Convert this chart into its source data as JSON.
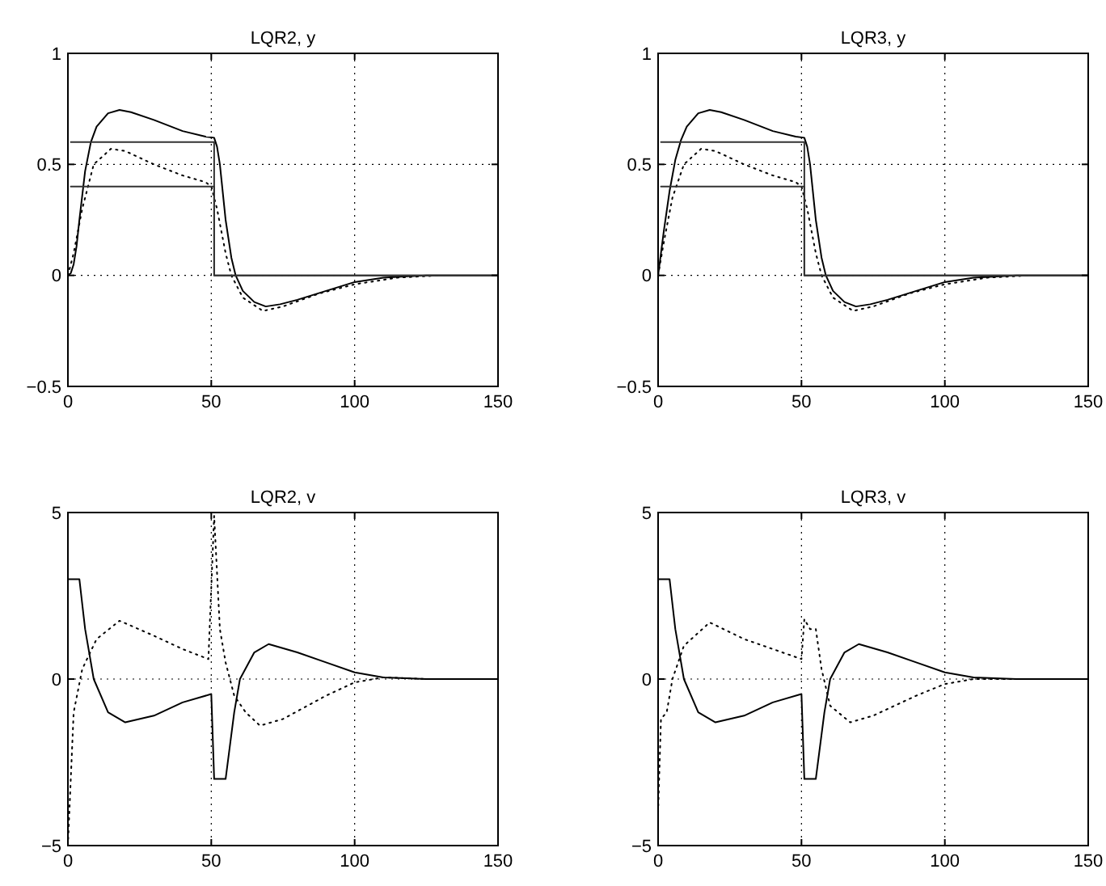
{
  "chart_data": [
    {
      "type": "line",
      "title": "LQR2, y",
      "xlim": [
        0,
        150
      ],
      "xticks": [
        0,
        50,
        100,
        150
      ],
      "ylim": [
        -0.5,
        1
      ],
      "yticks": [
        -0.5,
        0,
        0.5,
        1
      ],
      "grid": true,
      "series": [
        {
          "color": "#000000",
          "line_style": "solid",
          "x": [
            0,
            1,
            2,
            3,
            4,
            6,
            8,
            10,
            14,
            18,
            22,
            30,
            40,
            48,
            51,
            52,
            53,
            55,
            57,
            58.5,
            61,
            65,
            69,
            74,
            80,
            90,
            100,
            110,
            125,
            150
          ],
          "values": [
            0,
            0.01,
            0.05,
            0.13,
            0.25,
            0.47,
            0.6,
            0.67,
            0.73,
            0.745,
            0.735,
            0.7,
            0.65,
            0.625,
            0.62,
            0.58,
            0.5,
            0.25,
            0.08,
            0,
            -0.07,
            -0.12,
            -0.14,
            -0.13,
            -0.11,
            -0.07,
            -0.03,
            -0.01,
            0,
            0
          ]
        },
        {
          "color": "#000000",
          "line_style": "dotted",
          "x": [
            0,
            2,
            5,
            9,
            15,
            20,
            30,
            40,
            48,
            50,
            52,
            55,
            57,
            61,
            68,
            75,
            88,
            100,
            115,
            130
          ],
          "values": [
            0,
            0.1,
            0.3,
            0.5,
            0.57,
            0.56,
            0.5,
            0.45,
            0.42,
            0.4,
            0.3,
            0.1,
            0,
            -0.1,
            -0.16,
            -0.14,
            -0.08,
            -0.04,
            -0.01,
            0
          ]
        },
        {
          "color": "#333333",
          "line_style": "solid",
          "x": [
            1,
            51,
            51,
            150
          ],
          "values": [
            0.6,
            0.6,
            0,
            0
          ]
        },
        {
          "color": "#333333",
          "line_style": "solid",
          "x": [
            1,
            51,
            51,
            150
          ],
          "values": [
            0.4,
            0.4,
            0,
            0
          ]
        }
      ]
    },
    {
      "type": "line",
      "title": "LQR3, y",
      "xlim": [
        0,
        150
      ],
      "xticks": [
        0,
        50,
        100,
        150
      ],
      "ylim": [
        -0.5,
        1
      ],
      "yticks": [
        -0.5,
        0,
        0.5,
        1
      ],
      "grid": true,
      "series": [
        {
          "color": "#000000",
          "line_style": "solid",
          "x": [
            0,
            2,
            4,
            6,
            8,
            10,
            14,
            18,
            22,
            30,
            40,
            48,
            51,
            52,
            53,
            55,
            57,
            58.5,
            61,
            65,
            69,
            74,
            80,
            90,
            100,
            110,
            125,
            150
          ],
          "values": [
            0,
            0.2,
            0.38,
            0.52,
            0.61,
            0.67,
            0.73,
            0.745,
            0.735,
            0.7,
            0.65,
            0.625,
            0.62,
            0.58,
            0.5,
            0.25,
            0.08,
            0,
            -0.07,
            -0.12,
            -0.14,
            -0.13,
            -0.11,
            -0.07,
            -0.03,
            -0.01,
            0,
            0
          ]
        },
        {
          "color": "#000000",
          "line_style": "dotted",
          "x": [
            0,
            2,
            5,
            9,
            15,
            20,
            30,
            40,
            48,
            50,
            52,
            55,
            57,
            61,
            68,
            75,
            88,
            100,
            115,
            130
          ],
          "values": [
            0,
            0.15,
            0.35,
            0.5,
            0.57,
            0.56,
            0.5,
            0.45,
            0.42,
            0.4,
            0.3,
            0.1,
            0,
            -0.1,
            -0.16,
            -0.14,
            -0.08,
            -0.04,
            -0.01,
            0
          ]
        },
        {
          "color": "#333333",
          "line_style": "solid",
          "x": [
            1,
            51,
            51,
            150
          ],
          "values": [
            0.6,
            0.6,
            0,
            0
          ]
        },
        {
          "color": "#333333",
          "line_style": "solid",
          "x": [
            1,
            51,
            51,
            150
          ],
          "values": [
            0.4,
            0.4,
            0,
            0
          ]
        }
      ]
    },
    {
      "type": "line",
      "title": "LQR2, v",
      "xlim": [
        0,
        150
      ],
      "xticks": [
        0,
        50,
        100,
        150
      ],
      "ylim": [
        -5,
        5
      ],
      "yticks": [
        -5,
        0,
        5
      ],
      "grid": true,
      "series": [
        {
          "color": "#000000",
          "line_style": "solid",
          "x": [
            0,
            4,
            6,
            9,
            14,
            20,
            30,
            40,
            50,
            51,
            55,
            58,
            60,
            65,
            70,
            80,
            90,
            100,
            110,
            125,
            150
          ],
          "values": [
            3,
            3,
            1.5,
            0,
            -1,
            -1.3,
            -1.1,
            -0.7,
            -0.45,
            -3,
            -3,
            -1,
            0,
            0.8,
            1.05,
            0.8,
            0.5,
            0.2,
            0.05,
            0,
            0
          ]
        },
        {
          "color": "#000000",
          "line_style": "dotted",
          "x": [
            0,
            1,
            2,
            5,
            10,
            18,
            30,
            40,
            49,
            51,
            53,
            55,
            58,
            62,
            67,
            75,
            90,
            100,
            110,
            125
          ],
          "values": [
            -5,
            -3,
            -1,
            0.3,
            1.2,
            1.75,
            1.3,
            0.9,
            0.6,
            4.9,
            1.5,
            0.5,
            -0.5,
            -1,
            -1.4,
            -1.2,
            -0.5,
            -0.1,
            0.05,
            0
          ]
        }
      ]
    },
    {
      "type": "line",
      "title": "LQR3, v",
      "xlim": [
        0,
        150
      ],
      "xticks": [
        0,
        50,
        100,
        150
      ],
      "ylim": [
        -5,
        5
      ],
      "yticks": [
        -5,
        0,
        5
      ],
      "grid": true,
      "series": [
        {
          "color": "#000000",
          "line_style": "solid",
          "x": [
            0,
            4,
            6,
            9,
            14,
            20,
            30,
            40,
            50,
            51,
            55,
            58,
            60,
            65,
            70,
            80,
            90,
            100,
            110,
            125,
            150
          ],
          "values": [
            3,
            3,
            1.5,
            0,
            -1,
            -1.3,
            -1.1,
            -0.7,
            -0.45,
            -3,
            -3,
            -1,
            0,
            0.8,
            1.05,
            0.8,
            0.5,
            0.2,
            0.05,
            0,
            0
          ]
        },
        {
          "color": "#000000",
          "line_style": "dotted",
          "x": [
            0,
            1,
            3,
            5,
            9,
            18,
            30,
            40,
            50,
            51,
            53,
            55,
            57,
            60,
            67,
            75,
            90,
            100,
            110,
            125
          ],
          "values": [
            -4,
            -1.2,
            -1,
            0,
            1,
            1.7,
            1.2,
            0.9,
            0.6,
            1.8,
            1.5,
            1.5,
            0.3,
            -0.8,
            -1.3,
            -1.1,
            -0.5,
            -0.15,
            0,
            0
          ]
        }
      ]
    }
  ]
}
